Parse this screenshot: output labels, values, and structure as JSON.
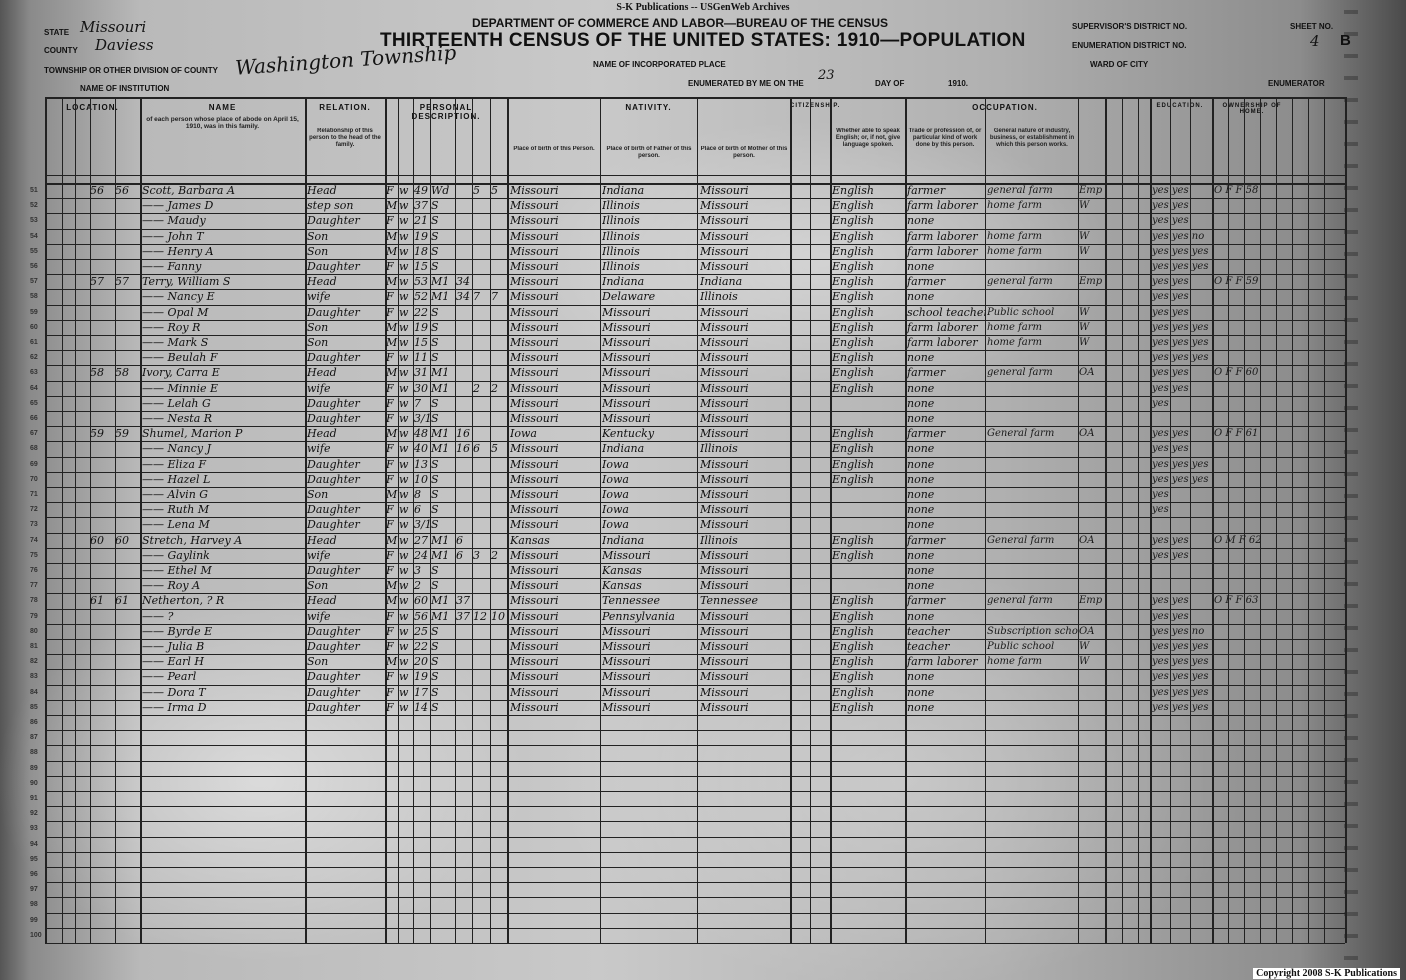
{
  "watermark": "S-K Publications -- USGenWeb Archives",
  "copyright": "Copyright 2008 S-K Publications",
  "header": {
    "department": "DEPARTMENT OF COMMERCE AND LABOR—BUREAU OF THE CENSUS",
    "title": "THIRTEENTH CENSUS OF THE UNITED STATES: 1910—POPULATION",
    "state_label": "State",
    "state": "Missouri",
    "county_label": "County",
    "county": "Daviess",
    "township_label": "Township or other division of county",
    "township": "Washington Township",
    "institution_label": "Name of institution",
    "incorporated_label": "Name of incorporated place",
    "enumerated_label": "Enumerated by me on the",
    "enumerated_day": "23",
    "day_of_label": "day of",
    "year_label": "1910.",
    "enumerator_label": "Enumerator",
    "supervisor_label": "Supervisor's District No.",
    "ed_label": "Enumeration District No.",
    "ward_label": "Ward of city",
    "sheet_label": "Sheet No.",
    "sheet_no": "4",
    "sheet_side": "B"
  },
  "column_groups": {
    "location": "LOCATION.",
    "name": "NAME",
    "relation": "RELATION.",
    "personal": "PERSONAL DESCRIPTION.",
    "nativity": "NATIVITY.",
    "citizenship": "CITIZENSHIP.",
    "occupation": "OCCUPATION.",
    "education": "EDUCATION.",
    "ownership": "OWNERSHIP OF HOME."
  },
  "column_headers": {
    "name": "of each person whose place of abode on April 15, 1910, was in this family.",
    "relation": "Relationship of this person to the head of the family.",
    "birth_person": "Place of birth of this Person.",
    "birth_father": "Place of birth of Father of this person.",
    "birth_mother": "Place of birth of Mother of this person.",
    "language": "Whether able to speak English; or, if not, give language spoken.",
    "trade": "Trade or profession of, or particular kind of work done by this person.",
    "industry": "General nature of industry, business, or establishment in which this person works."
  },
  "rows": [
    {
      "line": "51",
      "dwelling": "56",
      "family": "56",
      "name": "Scott, Barbara A",
      "relation": "Head",
      "sex": "F",
      "color": "w",
      "age": "49",
      "marital": "Wd",
      "years": "",
      "born": "5",
      "living": "5",
      "birth": "Missouri",
      "father": "Indiana",
      "mother": "Missouri",
      "language": "English",
      "trade": "farmer",
      "industry": "general farm",
      "emp": "Emp",
      "literacy": "yes yes",
      "own": "O F F 58"
    },
    {
      "line": "52",
      "dwelling": "",
      "family": "",
      "name": "—— James D",
      "relation": "step son",
      "sex": "M",
      "color": "w",
      "age": "37",
      "marital": "S",
      "years": "",
      "born": "",
      "living": "",
      "birth": "Missouri",
      "father": "Illinois",
      "mother": "Missouri",
      "language": "English",
      "trade": "farm laborer",
      "industry": "home farm",
      "emp": "W",
      "literacy": "yes yes",
      "own": ""
    },
    {
      "line": "53",
      "dwelling": "",
      "family": "",
      "name": "—— Maudy",
      "relation": "Daughter",
      "sex": "F",
      "color": "w",
      "age": "21",
      "marital": "S",
      "years": "",
      "born": "",
      "living": "",
      "birth": "Missouri",
      "father": "Illinois",
      "mother": "Missouri",
      "language": "English",
      "trade": "none",
      "industry": "",
      "emp": "",
      "literacy": "yes yes",
      "own": ""
    },
    {
      "line": "54",
      "dwelling": "",
      "family": "",
      "name": "—— John T",
      "relation": "Son",
      "sex": "M",
      "color": "w",
      "age": "19",
      "marital": "S",
      "years": "",
      "born": "",
      "living": "",
      "birth": "Missouri",
      "father": "Illinois",
      "mother": "Missouri",
      "language": "English",
      "trade": "farm laborer",
      "industry": "home farm",
      "emp": "W",
      "literacy": "yes yes no",
      "own": ""
    },
    {
      "line": "55",
      "dwelling": "",
      "family": "",
      "name": "—— Henry A",
      "relation": "Son",
      "sex": "M",
      "color": "w",
      "age": "18",
      "marital": "S",
      "years": "",
      "born": "",
      "living": "",
      "birth": "Missouri",
      "father": "Illinois",
      "mother": "Missouri",
      "language": "English",
      "trade": "farm laborer",
      "industry": "home farm",
      "emp": "W",
      "literacy": "yes yes yes",
      "own": ""
    },
    {
      "line": "56",
      "dwelling": "",
      "family": "",
      "name": "—— Fanny",
      "relation": "Daughter",
      "sex": "F",
      "color": "w",
      "age": "15",
      "marital": "S",
      "years": "",
      "born": "",
      "living": "",
      "birth": "Missouri",
      "father": "Illinois",
      "mother": "Missouri",
      "language": "English",
      "trade": "none",
      "industry": "",
      "emp": "",
      "literacy": "yes yes yes",
      "own": ""
    },
    {
      "line": "57",
      "dwelling": "57",
      "family": "57",
      "name": "Terry, William S",
      "relation": "Head",
      "sex": "M",
      "color": "w",
      "age": "53",
      "marital": "M1",
      "years": "34",
      "born": "",
      "living": "",
      "birth": "Missouri",
      "father": "Indiana",
      "mother": "Indiana",
      "language": "English",
      "trade": "farmer",
      "industry": "general farm",
      "emp": "Emp",
      "literacy": "yes yes",
      "own": "O F F 59"
    },
    {
      "line": "58",
      "dwelling": "",
      "family": "",
      "name": "—— Nancy E",
      "relation": "wife",
      "sex": "F",
      "color": "w",
      "age": "52",
      "marital": "M1",
      "years": "34",
      "born": "7",
      "living": "7",
      "birth": "Missouri",
      "father": "Delaware",
      "mother": "Illinois",
      "language": "English",
      "trade": "none",
      "industry": "",
      "emp": "",
      "literacy": "yes yes",
      "own": ""
    },
    {
      "line": "59",
      "dwelling": "",
      "family": "",
      "name": "—— Opal M",
      "relation": "Daughter",
      "sex": "F",
      "color": "w",
      "age": "22",
      "marital": "S",
      "years": "",
      "born": "",
      "living": "",
      "birth": "Missouri",
      "father": "Missouri",
      "mother": "Missouri",
      "language": "English",
      "trade": "school teacher",
      "industry": "Public school",
      "emp": "W",
      "literacy": "yes yes",
      "own": ""
    },
    {
      "line": "60",
      "dwelling": "",
      "family": "",
      "name": "—— Roy R",
      "relation": "Son",
      "sex": "M",
      "color": "w",
      "age": "19",
      "marital": "S",
      "years": "",
      "born": "",
      "living": "",
      "birth": "Missouri",
      "father": "Missouri",
      "mother": "Missouri",
      "language": "English",
      "trade": "farm laborer",
      "industry": "home farm",
      "emp": "W",
      "literacy": "yes yes yes",
      "own": ""
    },
    {
      "line": "61",
      "dwelling": "",
      "family": "",
      "name": "—— Mark S",
      "relation": "Son",
      "sex": "M",
      "color": "w",
      "age": "15",
      "marital": "S",
      "years": "",
      "born": "",
      "living": "",
      "birth": "Missouri",
      "father": "Missouri",
      "mother": "Missouri",
      "language": "English",
      "trade": "farm laborer",
      "industry": "home farm",
      "emp": "W",
      "literacy": "yes yes yes",
      "own": ""
    },
    {
      "line": "62",
      "dwelling": "",
      "family": "",
      "name": "—— Beulah F",
      "relation": "Daughter",
      "sex": "F",
      "color": "w",
      "age": "11",
      "marital": "S",
      "years": "",
      "born": "",
      "living": "",
      "birth": "Missouri",
      "father": "Missouri",
      "mother": "Missouri",
      "language": "English",
      "trade": "none",
      "industry": "",
      "emp": "",
      "literacy": "yes yes yes",
      "own": ""
    },
    {
      "line": "63",
      "dwelling": "58",
      "family": "58",
      "name": "Ivory, Carra E",
      "relation": "Head",
      "sex": "M",
      "color": "w",
      "age": "31",
      "marital": "M1",
      "years": "",
      "born": "",
      "living": "",
      "birth": "Missouri",
      "father": "Missouri",
      "mother": "Missouri",
      "language": "English",
      "trade": "farmer",
      "industry": "general farm",
      "emp": "OA",
      "literacy": "yes yes",
      "own": "O F F 60"
    },
    {
      "line": "64",
      "dwelling": "",
      "family": "",
      "name": "—— Minnie E",
      "relation": "wife",
      "sex": "F",
      "color": "w",
      "age": "30",
      "marital": "M1",
      "years": "",
      "born": "2",
      "living": "2",
      "birth": "Missouri",
      "father": "Missouri",
      "mother": "Missouri",
      "language": "English",
      "trade": "none",
      "industry": "",
      "emp": "",
      "literacy": "yes yes",
      "own": ""
    },
    {
      "line": "65",
      "dwelling": "",
      "family": "",
      "name": "—— Lelah G",
      "relation": "Daughter",
      "sex": "F",
      "color": "w",
      "age": "7",
      "marital": "S",
      "years": "",
      "born": "",
      "living": "",
      "birth": "Missouri",
      "father": "Missouri",
      "mother": "Missouri",
      "language": "",
      "trade": "none",
      "industry": "",
      "emp": "",
      "literacy": "yes",
      "own": ""
    },
    {
      "line": "66",
      "dwelling": "",
      "family": "",
      "name": "—— Nesta R",
      "relation": "Daughter",
      "sex": "F",
      "color": "w",
      "age": "3/12",
      "marital": "S",
      "years": "",
      "born": "",
      "living": "",
      "birth": "Missouri",
      "father": "Missouri",
      "mother": "Missouri",
      "language": "",
      "trade": "none",
      "industry": "",
      "emp": "",
      "literacy": "",
      "own": ""
    },
    {
      "line": "67",
      "dwelling": "59",
      "family": "59",
      "name": "Shumel, Marion P",
      "relation": "Head",
      "sex": "M",
      "color": "w",
      "age": "48",
      "marital": "M1",
      "years": "16",
      "born": "",
      "living": "",
      "birth": "Iowa",
      "father": "Kentucky",
      "mother": "Missouri",
      "language": "English",
      "trade": "farmer",
      "industry": "General farm",
      "emp": "OA",
      "literacy": "yes yes",
      "own": "O F F 61"
    },
    {
      "line": "68",
      "dwelling": "",
      "family": "",
      "name": "—— Nancy J",
      "relation": "wife",
      "sex": "F",
      "color": "w",
      "age": "40",
      "marital": "M1",
      "years": "16",
      "born": "6",
      "living": "5",
      "birth": "Missouri",
      "father": "Indiana",
      "mother": "Illinois",
      "language": "English",
      "trade": "none",
      "industry": "",
      "emp": "",
      "literacy": "yes yes",
      "own": ""
    },
    {
      "line": "69",
      "dwelling": "",
      "family": "",
      "name": "—— Eliza F",
      "relation": "Daughter",
      "sex": "F",
      "color": "w",
      "age": "13",
      "marital": "S",
      "years": "",
      "born": "",
      "living": "",
      "birth": "Missouri",
      "father": "Iowa",
      "mother": "Missouri",
      "language": "English",
      "trade": "none",
      "industry": "",
      "emp": "",
      "literacy": "yes yes yes",
      "own": ""
    },
    {
      "line": "70",
      "dwelling": "",
      "family": "",
      "name": "—— Hazel L",
      "relation": "Daughter",
      "sex": "F",
      "color": "w",
      "age": "10",
      "marital": "S",
      "years": "",
      "born": "",
      "living": "",
      "birth": "Missouri",
      "father": "Iowa",
      "mother": "Missouri",
      "language": "English",
      "trade": "none",
      "industry": "",
      "emp": "",
      "literacy": "yes yes yes",
      "own": ""
    },
    {
      "line": "71",
      "dwelling": "",
      "family": "",
      "name": "—— Alvin G",
      "relation": "Son",
      "sex": "M",
      "color": "w",
      "age": "8",
      "marital": "S",
      "years": "",
      "born": "",
      "living": "",
      "birth": "Missouri",
      "father": "Iowa",
      "mother": "Missouri",
      "language": "",
      "trade": "none",
      "industry": "",
      "emp": "",
      "literacy": "yes",
      "own": ""
    },
    {
      "line": "72",
      "dwelling": "",
      "family": "",
      "name": "—— Ruth M",
      "relation": "Daughter",
      "sex": "F",
      "color": "w",
      "age": "6",
      "marital": "S",
      "years": "",
      "born": "",
      "living": "",
      "birth": "Missouri",
      "father": "Iowa",
      "mother": "Missouri",
      "language": "",
      "trade": "none",
      "industry": "",
      "emp": "",
      "literacy": "yes",
      "own": ""
    },
    {
      "line": "73",
      "dwelling": "",
      "family": "",
      "name": "—— Lena M",
      "relation": "Daughter",
      "sex": "F",
      "color": "w",
      "age": "3/12",
      "marital": "S",
      "years": "",
      "born": "",
      "living": "",
      "birth": "Missouri",
      "father": "Iowa",
      "mother": "Missouri",
      "language": "",
      "trade": "none",
      "industry": "",
      "emp": "",
      "literacy": "",
      "own": ""
    },
    {
      "line": "74",
      "dwelling": "60",
      "family": "60",
      "name": "Stretch, Harvey A",
      "relation": "Head",
      "sex": "M",
      "color": "w",
      "age": "27",
      "marital": "M1",
      "years": "6",
      "born": "",
      "living": "",
      "birth": "Kansas",
      "father": "Indiana",
      "mother": "Illinois",
      "language": "English",
      "trade": "farmer",
      "industry": "General farm",
      "emp": "OA",
      "literacy": "yes yes",
      "own": "O M F 62"
    },
    {
      "line": "75",
      "dwelling": "",
      "family": "",
      "name": "—— Gaylink",
      "relation": "wife",
      "sex": "F",
      "color": "w",
      "age": "24",
      "marital": "M1",
      "years": "6",
      "born": "3",
      "living": "2",
      "birth": "Missouri",
      "father": "Missouri",
      "mother": "Missouri",
      "language": "English",
      "trade": "none",
      "industry": "",
      "emp": "",
      "literacy": "yes yes",
      "own": ""
    },
    {
      "line": "76",
      "dwelling": "",
      "family": "",
      "name": "—— Ethel M",
      "relation": "Daughter",
      "sex": "F",
      "color": "w",
      "age": "3",
      "marital": "S",
      "years": "",
      "born": "",
      "living": "",
      "birth": "Missouri",
      "father": "Kansas",
      "mother": "Missouri",
      "language": "",
      "trade": "none",
      "industry": "",
      "emp": "",
      "literacy": "",
      "own": ""
    },
    {
      "line": "77",
      "dwelling": "",
      "family": "",
      "name": "—— Roy A",
      "relation": "Son",
      "sex": "M",
      "color": "w",
      "age": "2",
      "marital": "S",
      "years": "",
      "born": "",
      "living": "",
      "birth": "Missouri",
      "father": "Kansas",
      "mother": "Missouri",
      "language": "",
      "trade": "none",
      "industry": "",
      "emp": "",
      "literacy": "",
      "own": ""
    },
    {
      "line": "78",
      "dwelling": "61",
      "family": "61",
      "name": "Netherton, ? R",
      "relation": "Head",
      "sex": "M",
      "color": "w",
      "age": "60",
      "marital": "M1",
      "years": "37",
      "born": "",
      "living": "",
      "birth": "Missouri",
      "father": "Tennessee",
      "mother": "Tennessee",
      "language": "English",
      "trade": "farmer",
      "industry": "general farm",
      "emp": "Emp",
      "literacy": "yes yes",
      "own": "O F F 63"
    },
    {
      "line": "79",
      "dwelling": "",
      "family": "",
      "name": "—— ?",
      "relation": "wife",
      "sex": "F",
      "color": "w",
      "age": "56",
      "marital": "M1",
      "years": "37",
      "born": "12",
      "living": "10",
      "birth": "Missouri",
      "father": "Pennsylvania",
      "mother": "Missouri",
      "language": "English",
      "trade": "none",
      "industry": "",
      "emp": "",
      "literacy": "yes yes",
      "own": ""
    },
    {
      "line": "80",
      "dwelling": "",
      "family": "",
      "name": "—— Byrde E",
      "relation": "Daughter",
      "sex": "F",
      "color": "w",
      "age": "25",
      "marital": "S",
      "years": "",
      "born": "",
      "living": "",
      "birth": "Missouri",
      "father": "Missouri",
      "mother": "Missouri",
      "language": "English",
      "trade": "teacher",
      "industry": "Subscription school",
      "emp": "OA",
      "literacy": "yes yes no",
      "own": ""
    },
    {
      "line": "81",
      "dwelling": "",
      "family": "",
      "name": "—— Julia B",
      "relation": "Daughter",
      "sex": "F",
      "color": "w",
      "age": "22",
      "marital": "S",
      "years": "",
      "born": "",
      "living": "",
      "birth": "Missouri",
      "father": "Missouri",
      "mother": "Missouri",
      "language": "English",
      "trade": "teacher",
      "industry": "Public school",
      "emp": "W",
      "literacy": "yes yes yes",
      "own": ""
    },
    {
      "line": "82",
      "dwelling": "",
      "family": "",
      "name": "—— Earl H",
      "relation": "Son",
      "sex": "M",
      "color": "w",
      "age": "20",
      "marital": "S",
      "years": "",
      "born": "",
      "living": "",
      "birth": "Missouri",
      "father": "Missouri",
      "mother": "Missouri",
      "language": "English",
      "trade": "farm laborer",
      "industry": "home farm",
      "emp": "W",
      "literacy": "yes yes yes",
      "own": ""
    },
    {
      "line": "83",
      "dwelling": "",
      "family": "",
      "name": "—— Pearl",
      "relation": "Daughter",
      "sex": "F",
      "color": "w",
      "age": "19",
      "marital": "S",
      "years": "",
      "born": "",
      "living": "",
      "birth": "Missouri",
      "father": "Missouri",
      "mother": "Missouri",
      "language": "English",
      "trade": "none",
      "industry": "",
      "emp": "",
      "literacy": "yes yes yes",
      "own": ""
    },
    {
      "line": "84",
      "dwelling": "",
      "family": "",
      "name": "—— Dora T",
      "relation": "Daughter",
      "sex": "F",
      "color": "w",
      "age": "17",
      "marital": "S",
      "years": "",
      "born": "",
      "living": "",
      "birth": "Missouri",
      "father": "Missouri",
      "mother": "Missouri",
      "language": "English",
      "trade": "none",
      "industry": "",
      "emp": "",
      "literacy": "yes yes yes",
      "own": ""
    },
    {
      "line": "85",
      "dwelling": "",
      "family": "",
      "name": "—— Irma D",
      "relation": "Daughter",
      "sex": "F",
      "color": "w",
      "age": "14",
      "marital": "S",
      "years": "",
      "born": "",
      "living": "",
      "birth": "Missouri",
      "father": "Missouri",
      "mother": "Missouri",
      "language": "English",
      "trade": "none",
      "industry": "",
      "emp": "",
      "literacy": "yes yes yes",
      "own": ""
    }
  ],
  "blank_lines": [
    "86",
    "87",
    "88",
    "89",
    "90",
    "91",
    "92",
    "93",
    "94",
    "95",
    "96",
    "97",
    "98",
    "99",
    "100"
  ]
}
